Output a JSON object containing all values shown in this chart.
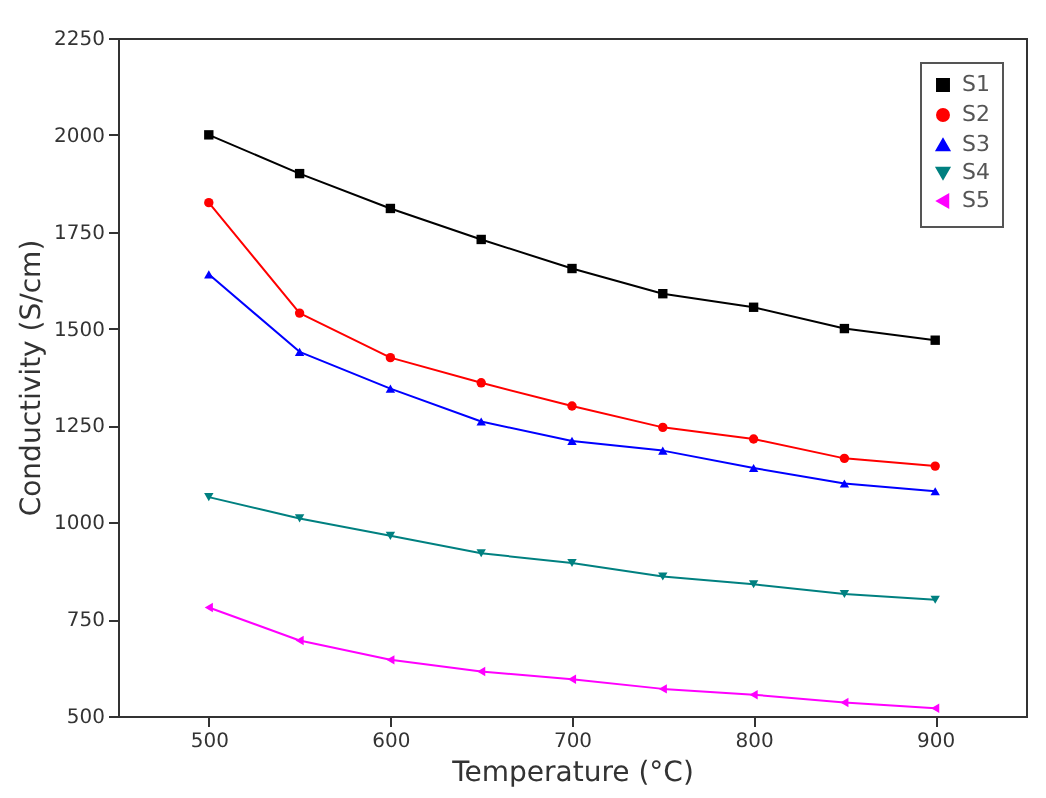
{
  "chart_data": {
    "type": "line",
    "xlabel": "Temperature (°C)",
    "ylabel": "Conductivity (S/cm)",
    "x": [
      500,
      550,
      600,
      650,
      700,
      750,
      800,
      850,
      900
    ],
    "xlim": [
      450,
      950
    ],
    "xticks": [
      500,
      600,
      700,
      800,
      900
    ],
    "ylim": [
      500,
      2250
    ],
    "yticks": [
      500,
      750,
      1000,
      1250,
      1500,
      1750,
      2000,
      2250
    ],
    "grid": false,
    "legend": "top right",
    "line_style": "solid",
    "series": [
      {
        "name": "S1",
        "color": "#000000",
        "marker": "square",
        "values": [
          2000,
          1900,
          1810,
          1730,
          1655,
          1590,
          1555,
          1500,
          1470
        ]
      },
      {
        "name": "S2",
        "color": "#ff0000",
        "marker": "circle",
        "values": [
          1825,
          1540,
          1425,
          1360,
          1300,
          1245,
          1215,
          1165,
          1145
        ]
      },
      {
        "name": "S3",
        "color": "#0000ff",
        "marker": "triangle",
        "values": [
          1640,
          1440,
          1345,
          1260,
          1210,
          1185,
          1140,
          1100,
          1080
        ]
      },
      {
        "name": "S4",
        "color": "#008080",
        "marker": "triangle-down",
        "values": [
          1065,
          1010,
          965,
          920,
          895,
          860,
          840,
          815,
          800
        ]
      },
      {
        "name": "S5",
        "color": "#ff00ff",
        "marker": "triangle-left",
        "values": [
          780,
          695,
          645,
          615,
          595,
          570,
          555,
          535,
          520
        ]
      }
    ]
  }
}
